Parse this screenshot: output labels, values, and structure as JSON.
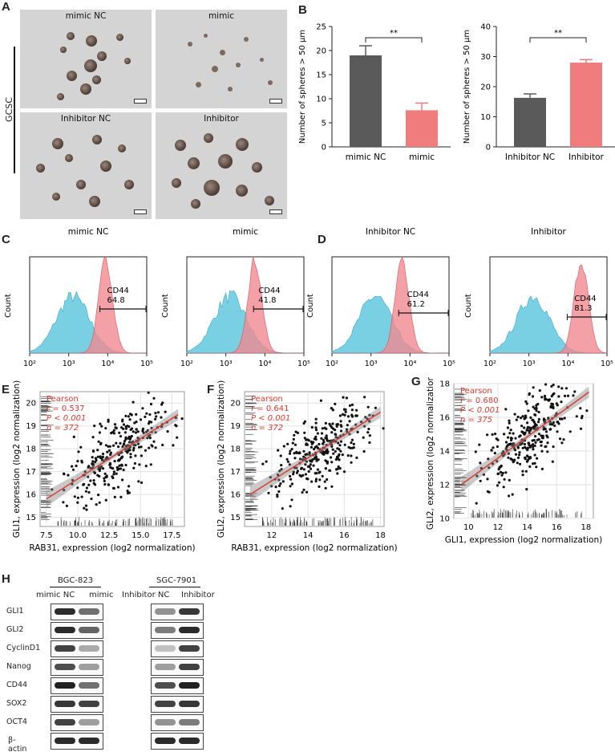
{
  "panels": {
    "A": "A",
    "B": "B",
    "C": "C",
    "D": "D",
    "E": "E",
    "F": "F",
    "G": "G",
    "H": "H"
  },
  "panelA": {
    "side_label": "GCSC",
    "captions": [
      "mimic NC",
      "mimic",
      "Inhibitor NC",
      "Inhibitor"
    ]
  },
  "panelB": {
    "chart1": {
      "type": "bar",
      "categories": [
        "mimic NC",
        "mimic"
      ],
      "values": [
        19,
        7.6
      ],
      "errors": [
        2,
        1.5
      ],
      "ylabel": "Number of spheres > 50 μm",
      "ylim": [
        0,
        25
      ],
      "yticks": [
        "0",
        "5",
        "10",
        "15",
        "20",
        "25"
      ],
      "sig": "**",
      "colors": [
        "#5a5a5a",
        "#f07c7e"
      ]
    },
    "chart2": {
      "type": "bar",
      "categories": [
        "Inhibitor NC",
        "Inhibitor"
      ],
      "values": [
        16.3,
        28
      ],
      "errors": [
        1.3,
        1
      ],
      "ylabel": "Number of spheres > 50 μm",
      "ylim": [
        0,
        40
      ],
      "yticks": [
        "0",
        "10",
        "20",
        "30",
        "40"
      ],
      "sig": "**",
      "colors": [
        "#5a5a5a",
        "#f07c7e"
      ]
    }
  },
  "histograms": [
    {
      "title": "mimic NC",
      "label": "CD44",
      "value": "64.8"
    },
    {
      "title": "mimic",
      "label": "CD44",
      "value": "41.8"
    },
    {
      "title": "Inhibitor NC",
      "label": "CD44",
      "value": "61.2"
    },
    {
      "title": "Inhibitor",
      "label": "CD44",
      "value": "81.3"
    }
  ],
  "hist_axis": {
    "ylabel": "Count",
    "xticks": [
      "10²",
      "10³",
      "10⁴",
      "10⁵"
    ]
  },
  "scatters": [
    {
      "xlabel": "RAB31, expression (log2 normalization)",
      "ylabel": "GLI1, expression (log2 normalization)",
      "xticks": [
        "7.5",
        "10.0",
        "12.5",
        "15.0",
        "17.5"
      ],
      "yticks": [
        "15",
        "16",
        "17",
        "18",
        "19",
        "20"
      ],
      "method": "Pearson",
      "r": "r = 0.537",
      "p": "P < 0.001",
      "n": "n = 372"
    },
    {
      "xlabel": "RAB31, expression (log2 normalization)",
      "ylabel": "GLI2, expression (log2 normalization)",
      "xticks": [
        "12",
        "14",
        "16",
        "18"
      ],
      "yticks": [
        "15",
        "16",
        "17",
        "18",
        "19",
        "20"
      ],
      "method": "Pearson",
      "r": "r = 0.641",
      "p": "P < 0.001",
      "n": "n = 372"
    },
    {
      "xlabel": "GLI1, expression (log2 normalization)",
      "ylabel": "GLI2, expression (log2 normalization)",
      "xticks": [
        "10",
        "12",
        "14",
        "16",
        "18"
      ],
      "yticks": [
        "10",
        "12",
        "14",
        "16",
        "18"
      ],
      "method": "Pearson",
      "r": "r = 0.680",
      "p": "P < 0.001",
      "n": "n = 375"
    }
  ],
  "chart_data": [
    {
      "type": "bar",
      "categories": [
        "mimic NC",
        "mimic"
      ],
      "values": [
        19,
        7.6
      ],
      "ylabel": "Number of spheres > 50 μm",
      "ylim": [
        0,
        25
      ]
    },
    {
      "type": "bar",
      "categories": [
        "Inhibitor NC",
        "Inhibitor"
      ],
      "values": [
        16.3,
        28
      ],
      "ylabel": "Number of spheres > 50 μm",
      "ylim": [
        0,
        40
      ]
    },
    {
      "type": "scatter",
      "xlabel": "RAB31, expression (log2 normalization)",
      "ylabel": "GLI1, expression (log2 normalization)",
      "xlim": [
        7,
        18.5
      ],
      "ylim": [
        14.6,
        20.5
      ],
      "fit": {
        "x": [
          7.5,
          18
        ],
        "y": [
          15.8,
          19.5
        ]
      }
    },
    {
      "type": "scatter",
      "xlabel": "RAB31, expression (log2 normalization)",
      "ylabel": "GLI2, expression (log2 normalization)",
      "xlim": [
        10.5,
        18.2
      ],
      "ylim": [
        14.6,
        20.5
      ],
      "fit": {
        "x": [
          10.8,
          18
        ],
        "y": [
          16,
          19.6
        ]
      }
    },
    {
      "type": "scatter",
      "xlabel": "GLI1, expression (log2 normalization)",
      "ylabel": "GLI2, expression (log2 normalization)",
      "xlim": [
        9,
        18.5
      ],
      "ylim": [
        10,
        18
      ],
      "fit": {
        "x": [
          9.5,
          18.2
        ],
        "y": [
          12,
          17.5
        ]
      }
    }
  ],
  "western": {
    "group1": "BGC-823",
    "group2": "SGC-7901",
    "lanes": [
      "mimic NC",
      "mimic",
      "Inhibitor NC",
      "Inhibitor"
    ],
    "proteins": [
      "GLI1",
      "GLI2",
      "CyclinD1",
      "Nanog",
      "CD44",
      "SOX2",
      "OCT4",
      "β-actin"
    ]
  }
}
